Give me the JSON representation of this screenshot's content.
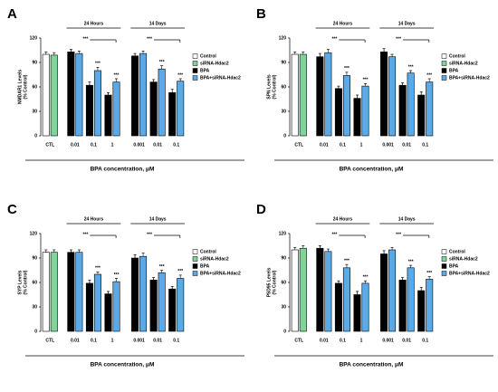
{
  "chart_data": [
    {
      "type": "bar",
      "panel": "A",
      "ylabel": [
        "NMDAR1 Levels",
        "(% Control)"
      ],
      "categories": [
        "CTL",
        "0.01",
        "0.1",
        "1",
        "0.001",
        "0.01",
        "0.1"
      ],
      "groups": [
        {
          "label": "24 Hours",
          "bracket": "***"
        },
        {
          "label": "14 Days",
          "bracket": "***"
        }
      ],
      "xlabel": "BPA concentration, μM",
      "ylim": [
        0,
        120
      ],
      "yticks": [
        0,
        30,
        60,
        90,
        120
      ],
      "series": [
        {
          "name": "Control",
          "color": "#ffffff",
          "values": [
            100,
            null,
            null,
            null,
            null,
            null,
            null
          ],
          "errors": [
            3,
            null,
            null,
            null,
            null,
            null,
            null
          ]
        },
        {
          "name": "siRNA-Hdac2",
          "color": "#7fd49a",
          "values": [
            99,
            null,
            null,
            null,
            null,
            null,
            null
          ],
          "errors": [
            3,
            null,
            null,
            null,
            null,
            null,
            null
          ]
        },
        {
          "name": "BPA",
          "color": "#000000",
          "values": [
            null,
            103,
            62,
            50,
            98,
            66,
            53
          ],
          "errors": [
            null,
            3,
            4,
            3,
            3,
            3,
            4
          ]
        },
        {
          "name": "BPA+siRNA-Hdac2",
          "color": "#5aaae8",
          "values": [
            null,
            101,
            80,
            66,
            101,
            82,
            67
          ],
          "errors": [
            null,
            3,
            4,
            4,
            3,
            4,
            3
          ],
          "significance": [
            null,
            null,
            "***",
            "***",
            null,
            "***",
            "***"
          ]
        }
      ]
    },
    {
      "type": "bar",
      "panel": "B",
      "ylabel": [
        "SPN Levels",
        "(% Control)"
      ],
      "categories": [
        "CTL",
        "0.01",
        "0.1",
        "1",
        "0.001",
        "0.01",
        "0.1"
      ],
      "groups": [
        {
          "label": "24 Hours",
          "bracket": "***"
        },
        {
          "label": "14 Days",
          "bracket": "***"
        }
      ],
      "xlabel": "BPA concentration, μM",
      "ylim": [
        0,
        120
      ],
      "yticks": [
        0,
        30,
        60,
        90,
        120
      ],
      "series": [
        {
          "name": "Control",
          "color": "#ffffff",
          "values": [
            100,
            null,
            null,
            null,
            null,
            null,
            null
          ],
          "errors": [
            3,
            null,
            null,
            null,
            null,
            null,
            null
          ]
        },
        {
          "name": "siRNA-Hdac2",
          "color": "#7fd49a",
          "values": [
            100,
            null,
            null,
            null,
            null,
            null,
            null
          ],
          "errors": [
            3,
            null,
            null,
            null,
            null,
            null,
            null
          ]
        },
        {
          "name": "BPA",
          "color": "#000000",
          "values": [
            null,
            97,
            58,
            46,
            103,
            62,
            50
          ],
          "errors": [
            null,
            4,
            3,
            4,
            4,
            3,
            4
          ]
        },
        {
          "name": "BPA+siRNA-Hdac2",
          "color": "#5aaae8",
          "values": [
            null,
            102,
            74,
            61,
            97,
            77,
            66
          ],
          "errors": [
            null,
            4,
            4,
            3,
            3,
            3,
            4
          ],
          "significance": [
            null,
            null,
            "***",
            "***",
            null,
            "***",
            "***"
          ]
        }
      ]
    },
    {
      "type": "bar",
      "panel": "C",
      "ylabel": [
        "SYP Levels",
        "(% Control)"
      ],
      "categories": [
        "CTL",
        "0.01",
        "0.1",
        "1",
        "0.001",
        "0.01",
        "0.1"
      ],
      "groups": [
        {
          "label": "24 Hours",
          "bracket": "***"
        },
        {
          "label": "14 Days",
          "bracket": "***"
        }
      ],
      "xlabel": "BPA concentration, μM",
      "ylim": [
        0,
        120
      ],
      "yticks": [
        0,
        30,
        60,
        90,
        120
      ],
      "series": [
        {
          "name": "Control",
          "color": "#ffffff",
          "values": [
            97,
            null,
            null,
            null,
            null,
            null,
            null
          ],
          "errors": [
            3,
            null,
            null,
            null,
            null,
            null,
            null
          ]
        },
        {
          "name": "siRNA-Hdac2",
          "color": "#7fd49a",
          "values": [
            97,
            null,
            null,
            null,
            null,
            null,
            null
          ],
          "errors": [
            3,
            null,
            null,
            null,
            null,
            null,
            null
          ]
        },
        {
          "name": "BPA",
          "color": "#000000",
          "values": [
            null,
            97,
            59,
            46,
            90,
            63,
            52
          ],
          "errors": [
            null,
            3,
            4,
            3,
            4,
            3,
            3
          ]
        },
        {
          "name": "BPA+siRNA-Hdac2",
          "color": "#5aaae8",
          "values": [
            null,
            97,
            70,
            61,
            92,
            72,
            65
          ],
          "errors": [
            null,
            3,
            3,
            4,
            4,
            3,
            4
          ],
          "significance": [
            null,
            null,
            "***",
            "***",
            null,
            "***",
            "***"
          ]
        }
      ]
    },
    {
      "type": "bar",
      "panel": "D",
      "ylabel": [
        "PSD95 Levels",
        "(% Control)"
      ],
      "categories": [
        "CTL",
        "0.01",
        "0.1",
        "1",
        "0.001",
        "0.01",
        "0.1"
      ],
      "groups": [
        {
          "label": "24 Hours",
          "bracket": "***"
        },
        {
          "label": "14 Days",
          "bracket": "***"
        }
      ],
      "xlabel": "BPA concentration, μM",
      "ylim": [
        0,
        120
      ],
      "yticks": [
        0,
        30,
        60,
        90,
        120
      ],
      "series": [
        {
          "name": "Control",
          "color": "#ffffff",
          "values": [
            100,
            null,
            null,
            null,
            null,
            null,
            null
          ],
          "errors": [
            3,
            null,
            null,
            null,
            null,
            null,
            null
          ]
        },
        {
          "name": "siRNA-Hdac2",
          "color": "#7fd49a",
          "values": [
            102,
            null,
            null,
            null,
            null,
            null,
            null
          ],
          "errors": [
            3,
            null,
            null,
            null,
            null,
            null,
            null
          ]
        },
        {
          "name": "BPA",
          "color": "#000000",
          "values": [
            null,
            102,
            59,
            45,
            95,
            63,
            50
          ],
          "errors": [
            null,
            3,
            3,
            4,
            4,
            3,
            4
          ]
        },
        {
          "name": "BPA+siRNA-Hdac2",
          "color": "#5aaae8",
          "values": [
            null,
            98,
            78,
            59,
            100,
            78,
            64
          ],
          "errors": [
            null,
            3,
            4,
            3,
            3,
            3,
            3
          ],
          "significance": [
            null,
            null,
            "***",
            "***",
            null,
            "***",
            "***"
          ]
        }
      ]
    }
  ]
}
